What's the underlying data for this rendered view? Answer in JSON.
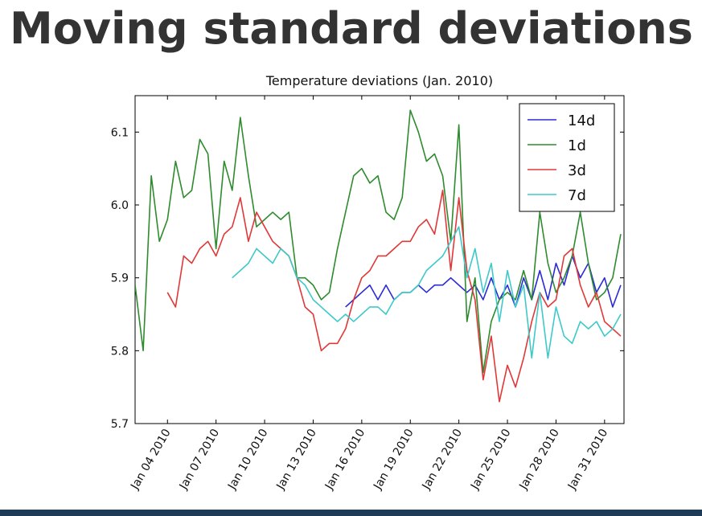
{
  "slide_title": "Moving standard deviations",
  "chart_data": {
    "type": "line",
    "title": "Temperature deviations (Jan. 2010)",
    "x": [
      2,
      2.5,
      3,
      3.5,
      4,
      4.5,
      5,
      5.5,
      6,
      6.5,
      7,
      7.5,
      8,
      8.5,
      9,
      9.5,
      10,
      10.5,
      11,
      11.5,
      12,
      12.5,
      13,
      13.5,
      14,
      14.5,
      15,
      15.5,
      16,
      16.5,
      17,
      17.5,
      18,
      18.5,
      19,
      19.5,
      20,
      20.5,
      21,
      21.5,
      22,
      22.5,
      23,
      23.5,
      24,
      24.5,
      25,
      25.5,
      26,
      26.5,
      27,
      27.5,
      28,
      28.5,
      29,
      29.5,
      30,
      30.5,
      31,
      31.5,
      32
    ],
    "series": [
      {
        "name": "14d",
        "color": "#2b2bd6",
        "values": [
          null,
          null,
          null,
          null,
          null,
          null,
          null,
          null,
          null,
          null,
          null,
          null,
          null,
          null,
          null,
          null,
          null,
          null,
          null,
          null,
          null,
          null,
          null,
          null,
          null,
          null,
          5.86,
          5.87,
          5.88,
          5.89,
          5.87,
          5.89,
          5.87,
          5.88,
          5.88,
          5.89,
          5.88,
          5.89,
          5.89,
          5.9,
          5.89,
          5.88,
          5.89,
          5.87,
          5.9,
          5.87,
          5.89,
          5.86,
          5.9,
          5.87,
          5.91,
          5.87,
          5.92,
          5.89,
          5.93,
          5.9,
          5.92,
          5.88,
          5.9,
          5.86,
          5.89
        ]
      },
      {
        "name": "1d",
        "color": "#2e8b2e",
        "values": [
          5.89,
          5.8,
          6.04,
          5.95,
          5.98,
          6.06,
          6.01,
          6.02,
          6.09,
          6.07,
          5.94,
          6.06,
          6.02,
          6.12,
          6.04,
          5.97,
          5.98,
          5.99,
          5.98,
          5.99,
          5.9,
          5.9,
          5.89,
          5.87,
          5.88,
          5.94,
          5.99,
          6.04,
          6.05,
          6.03,
          6.04,
          5.99,
          5.98,
          6.01,
          6.13,
          6.1,
          6.06,
          6.07,
          6.04,
          5.95,
          6.11,
          5.84,
          5.9,
          5.77,
          5.84,
          5.87,
          5.88,
          5.87,
          5.91,
          5.87,
          5.99,
          5.92,
          5.88,
          5.9,
          5.93,
          5.99,
          5.92,
          5.87,
          5.88,
          5.9,
          5.96
        ]
      },
      {
        "name": "3d",
        "color": "#e03838",
        "values": [
          null,
          null,
          null,
          null,
          5.88,
          5.86,
          5.93,
          5.92,
          5.94,
          5.95,
          5.93,
          5.96,
          5.97,
          6.01,
          5.95,
          5.99,
          5.97,
          5.95,
          5.94,
          5.93,
          5.9,
          5.86,
          5.85,
          5.8,
          5.81,
          5.81,
          5.83,
          5.87,
          5.9,
          5.91,
          5.93,
          5.93,
          5.94,
          5.95,
          5.95,
          5.97,
          5.98,
          5.96,
          6.02,
          5.91,
          6.01,
          5.91,
          5.87,
          5.76,
          5.82,
          5.73,
          5.78,
          5.75,
          5.79,
          5.84,
          5.88,
          5.86,
          5.87,
          5.93,
          5.94,
          5.89,
          5.86,
          5.88,
          5.84,
          5.83,
          5.82
        ]
      },
      {
        "name": "7d",
        "color": "#3ec9c9",
        "values": [
          null,
          null,
          null,
          null,
          null,
          null,
          null,
          null,
          null,
          null,
          null,
          null,
          5.9,
          5.91,
          5.92,
          5.94,
          5.93,
          5.92,
          5.94,
          5.93,
          5.9,
          5.89,
          5.87,
          5.86,
          5.85,
          5.84,
          5.85,
          5.84,
          5.85,
          5.86,
          5.86,
          5.85,
          5.87,
          5.88,
          5.88,
          5.89,
          5.91,
          5.92,
          5.93,
          5.95,
          5.97,
          5.9,
          5.94,
          5.88,
          5.92,
          5.84,
          5.91,
          5.86,
          5.89,
          5.79,
          5.88,
          5.79,
          5.86,
          5.82,
          5.81,
          5.84,
          5.83,
          5.84,
          5.82,
          5.83,
          5.85
        ]
      }
    ],
    "xlim": [
      2,
      32.2
    ],
    "xticks": [
      {
        "value": 4,
        "label": "Jan 04 2010"
      },
      {
        "value": 7,
        "label": "Jan 07 2010"
      },
      {
        "value": 10,
        "label": "Jan 10 2010"
      },
      {
        "value": 13,
        "label": "Jan 13 2010"
      },
      {
        "value": 16,
        "label": "Jan 16 2010"
      },
      {
        "value": 19,
        "label": "Jan 19 2010"
      },
      {
        "value": 22,
        "label": "Jan 22 2010"
      },
      {
        "value": 25,
        "label": "Jan 25 2010"
      },
      {
        "value": 28,
        "label": "Jan 28 2010"
      },
      {
        "value": 31,
        "label": "Jan 31 2010"
      }
    ],
    "ylim": [
      5.7,
      6.15
    ],
    "yticks": [
      5.7,
      5.8,
      5.9,
      {
        "value": 6,
        "label": "6.0"
      },
      6.1
    ],
    "grid": false,
    "legend": "upper-right"
  }
}
